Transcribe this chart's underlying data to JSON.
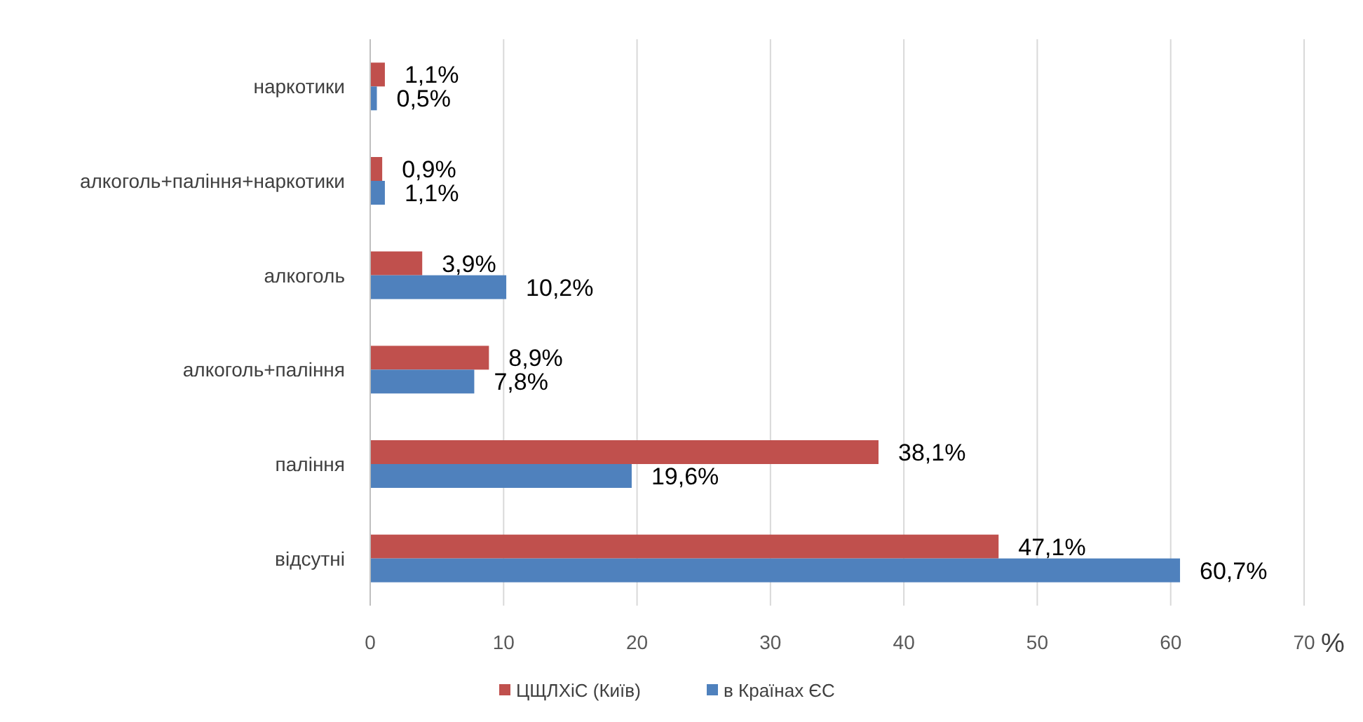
{
  "chart_data": {
    "type": "bar",
    "orientation": "horizontal",
    "xlabel": "%",
    "categories": [
      "наркотики",
      "алкоголь+паління+наркотики",
      "алкоголь",
      "алкоголь+паління",
      "паління",
      "відсутні"
    ],
    "series": [
      {
        "name": "ЦЩЛХіС (Київ)",
        "color": "#c0504d",
        "values": [
          1.1,
          0.9,
          3.9,
          8.9,
          38.1,
          47.1
        ],
        "value_labels": [
          "1,1%",
          "0,9%",
          "3,9%",
          "8,9%",
          "38,1%",
          "47,1%"
        ]
      },
      {
        "name": "в Країнах ЄС",
        "color": "#4f81bd",
        "values": [
          0.5,
          1.1,
          10.2,
          7.8,
          19.6,
          60.7
        ],
        "value_labels": [
          "0,5%",
          "1,1%",
          "10,2%",
          "7,8%",
          "19,6%",
          "60,7%"
        ]
      }
    ],
    "xlim": [
      0,
      70
    ],
    "xticks": [
      0,
      10,
      20,
      30,
      40,
      50,
      60,
      70
    ],
    "grid": "x",
    "legend": "bottom"
  }
}
